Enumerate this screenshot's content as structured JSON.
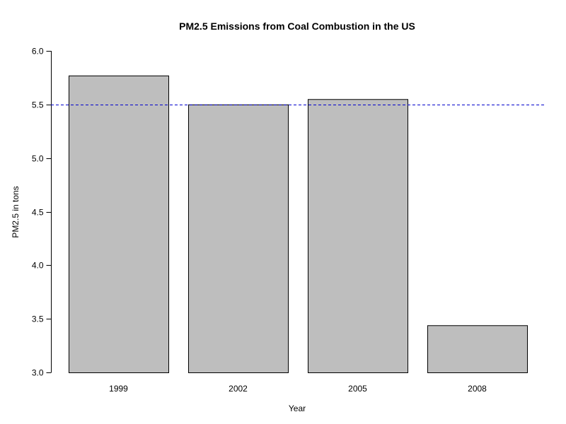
{
  "chart_data": {
    "type": "bar",
    "title": "PM2.5 Emissions from Coal Combustion in the US",
    "xlabel": "Year",
    "ylabel": "PM2.5 in tons",
    "categories": [
      "1999",
      "2002",
      "2005",
      "2008"
    ],
    "values": [
      5.77,
      5.5,
      5.55,
      3.44
    ],
    "ylim": [
      3.0,
      6.0
    ],
    "yticks": [
      "3.0",
      "3.5",
      "4.0",
      "4.5",
      "5.0",
      "5.5",
      "6.0"
    ],
    "reference_line": {
      "y": 5.5,
      "color": "#0000cd",
      "style": "dashed"
    },
    "bar_color": "#bebebe",
    "grid": false,
    "legend": "none"
  }
}
